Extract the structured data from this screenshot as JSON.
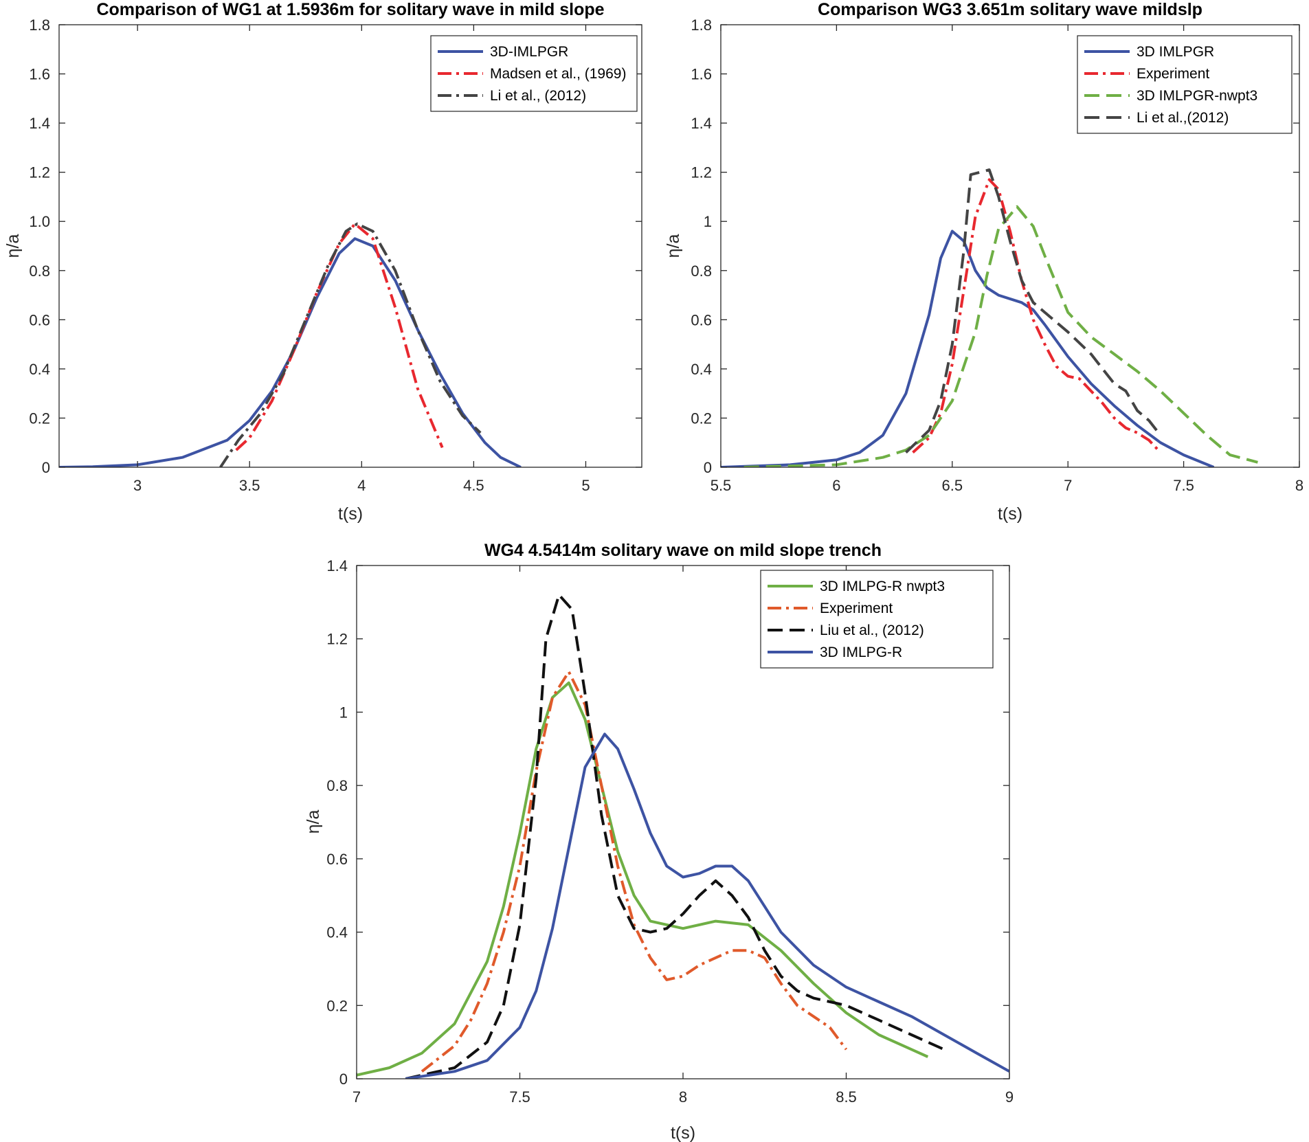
{
  "chart_data": [
    {
      "type": "line",
      "title": "Comparison of WG1 at 1.5936m for solitary wave in mild slope",
      "xlabel": "t(s)",
      "ylabel": "η/a",
      "xlim": [
        2.65,
        5.25
      ],
      "ylim": [
        0,
        1.8
      ],
      "xticks": [
        3,
        3.5,
        4,
        4.5,
        5
      ],
      "xtick_labels": [
        "3",
        "3.5",
        "4",
        "4.5",
        "5"
      ],
      "yticks": [
        0,
        0.2,
        0.4,
        0.6,
        0.8,
        1.0,
        1.2,
        1.4,
        1.6,
        1.8
      ],
      "ytick_labels": [
        "0",
        "0.2",
        "0.4",
        "0.6",
        "0.8",
        "1.0",
        "1.2",
        "1.4",
        "1.6",
        "1.8"
      ],
      "legend_position": "top-right",
      "grid": false,
      "series": [
        {
          "name": "3D-IMLPGR",
          "color": "#3D53A3",
          "style": "solid",
          "x": [
            2.65,
            2.8,
            3.0,
            3.2,
            3.4,
            3.5,
            3.6,
            3.7,
            3.8,
            3.9,
            3.97,
            4.05,
            4.15,
            4.25,
            4.35,
            4.45,
            4.55,
            4.62,
            4.71
          ],
          "y": [
            0.0,
            0.002,
            0.01,
            0.04,
            0.11,
            0.19,
            0.31,
            0.48,
            0.69,
            0.87,
            0.93,
            0.9,
            0.76,
            0.56,
            0.38,
            0.22,
            0.1,
            0.04,
            0.0
          ]
        },
        {
          "name": "Madsen et al., (1969)",
          "color": "#E8282F",
          "style": "dashdot",
          "x": [
            3.44,
            3.5,
            3.6,
            3.7,
            3.8,
            3.9,
            3.97,
            4.05,
            4.15,
            4.25,
            4.36
          ],
          "y": [
            0.07,
            0.12,
            0.27,
            0.48,
            0.71,
            0.91,
            0.99,
            0.93,
            0.65,
            0.32,
            0.08
          ]
        },
        {
          "name": "Li et al., (2012)",
          "color": "#444444",
          "style": "dashdot",
          "x": [
            3.37,
            3.45,
            3.55,
            3.65,
            3.75,
            3.85,
            3.93,
            3.98,
            4.05,
            4.15,
            4.25,
            4.35,
            4.45,
            4.53
          ],
          "y": [
            0.0,
            0.11,
            0.22,
            0.38,
            0.6,
            0.82,
            0.96,
            0.99,
            0.96,
            0.8,
            0.56,
            0.35,
            0.21,
            0.14
          ]
        }
      ]
    },
    {
      "type": "line",
      "title": "Comparison WG3 3.651m solitary wave mildslp",
      "xlabel": "t(s)",
      "ylabel": "η/a",
      "xlim": [
        5.5,
        8
      ],
      "ylim": [
        0,
        1.8
      ],
      "xticks": [
        5.5,
        6,
        6.5,
        7,
        7.5,
        8
      ],
      "xtick_labels": [
        "5.5",
        "6",
        "6.5",
        "7",
        "7.5",
        "8"
      ],
      "yticks": [
        0,
        0.2,
        0.4,
        0.6,
        0.8,
        1,
        1.2,
        1.4,
        1.6,
        1.8
      ],
      "ytick_labels": [
        "0",
        "0.2",
        "0.4",
        "0.6",
        "0.8",
        "1",
        "1.2",
        "1.4",
        "1.6",
        "1.8"
      ],
      "legend_position": "top-right",
      "grid": false,
      "series": [
        {
          "name": "3D IMLPGR",
          "color": "#3D53A3",
          "style": "solid",
          "x": [
            5.5,
            5.8,
            6.0,
            6.1,
            6.2,
            6.3,
            6.4,
            6.45,
            6.5,
            6.55,
            6.6,
            6.65,
            6.7,
            6.8,
            6.85,
            6.9,
            7.0,
            7.1,
            7.2,
            7.3,
            7.4,
            7.5,
            7.63
          ],
          "y": [
            0.0,
            0.01,
            0.03,
            0.06,
            0.13,
            0.3,
            0.62,
            0.85,
            0.96,
            0.92,
            0.8,
            0.73,
            0.7,
            0.67,
            0.64,
            0.58,
            0.45,
            0.34,
            0.25,
            0.17,
            0.1,
            0.05,
            0.0
          ]
        },
        {
          "name": "Experiment",
          "color": "#E8282F",
          "style": "dashdot",
          "x": [
            6.33,
            6.4,
            6.45,
            6.5,
            6.55,
            6.6,
            6.66,
            6.7,
            6.75,
            6.8,
            6.85,
            6.9,
            6.95,
            7.0,
            7.05,
            7.1,
            7.15,
            7.2,
            7.25,
            7.3,
            7.35,
            7.4
          ],
          "y": [
            0.06,
            0.12,
            0.22,
            0.42,
            0.72,
            1.02,
            1.17,
            1.13,
            0.96,
            0.76,
            0.6,
            0.5,
            0.41,
            0.37,
            0.36,
            0.31,
            0.26,
            0.2,
            0.16,
            0.14,
            0.11,
            0.06
          ]
        },
        {
          "name": "3D IMLPGR-nwpt3",
          "color": "#6FAF45",
          "style": "dashed",
          "x": [
            5.6,
            6.0,
            6.2,
            6.3,
            6.4,
            6.5,
            6.6,
            6.65,
            6.7,
            6.78,
            6.85,
            6.9,
            7.0,
            7.1,
            7.2,
            7.3,
            7.4,
            7.5,
            7.6,
            7.7,
            7.82
          ],
          "y": [
            0.0,
            0.01,
            0.04,
            0.07,
            0.13,
            0.27,
            0.55,
            0.78,
            0.97,
            1.06,
            0.98,
            0.86,
            0.63,
            0.53,
            0.46,
            0.39,
            0.31,
            0.22,
            0.13,
            0.05,
            0.02
          ]
        },
        {
          "name": "Li et al.,(2012)",
          "color": "#444444",
          "style": "dashed",
          "x": [
            6.3,
            6.4,
            6.45,
            6.5,
            6.55,
            6.58,
            6.62,
            6.66,
            6.7,
            6.75,
            6.8,
            6.85,
            6.9,
            7.0,
            7.1,
            7.15,
            7.2,
            7.25,
            7.3,
            7.35,
            7.4
          ],
          "y": [
            0.06,
            0.15,
            0.27,
            0.5,
            0.88,
            1.19,
            1.2,
            1.21,
            1.1,
            0.92,
            0.76,
            0.67,
            0.63,
            0.55,
            0.46,
            0.4,
            0.34,
            0.31,
            0.23,
            0.19,
            0.13
          ]
        }
      ]
    },
    {
      "type": "line",
      "title": "WG4 4.5414m solitary wave on mild slope trench",
      "xlabel": "t(s)",
      "ylabel": "η/a",
      "xlim": [
        7,
        9
      ],
      "ylim": [
        0,
        1.4
      ],
      "xticks": [
        7,
        7.5,
        8,
        8.5,
        9
      ],
      "xtick_labels": [
        "7",
        "7.5",
        "8",
        "8.5",
        "9"
      ],
      "yticks": [
        0,
        0.2,
        0.4,
        0.6,
        0.8,
        1,
        1.2,
        1.4
      ],
      "ytick_labels": [
        "0",
        "0.2",
        "0.4",
        "0.6",
        "0.8",
        "1",
        "1.2",
        "1.4"
      ],
      "legend_position": "top-right",
      "grid": false,
      "series": [
        {
          "name": "3D IMLPG-R nwpt3",
          "color": "#6FAF45",
          "style": "solid",
          "x": [
            7.0,
            7.1,
            7.2,
            7.3,
            7.4,
            7.45,
            7.5,
            7.55,
            7.6,
            7.65,
            7.7,
            7.75,
            7.8,
            7.85,
            7.9,
            8.0,
            8.1,
            8.2,
            8.3,
            8.4,
            8.5,
            8.6,
            8.7,
            8.75
          ],
          "y": [
            0.01,
            0.03,
            0.07,
            0.15,
            0.32,
            0.47,
            0.67,
            0.9,
            1.04,
            1.08,
            0.98,
            0.8,
            0.62,
            0.5,
            0.43,
            0.41,
            0.43,
            0.42,
            0.35,
            0.26,
            0.18,
            0.12,
            0.08,
            0.06
          ]
        },
        {
          "name": "Experiment",
          "color": "#E05A2B",
          "style": "dashdot",
          "x": [
            7.2,
            7.3,
            7.35,
            7.4,
            7.45,
            7.5,
            7.55,
            7.6,
            7.65,
            7.7,
            7.75,
            7.8,
            7.85,
            7.9,
            7.95,
            8.0,
            8.05,
            8.1,
            8.15,
            8.2,
            8.25,
            8.3,
            8.35,
            8.4,
            8.45,
            8.5
          ],
          "y": [
            0.02,
            0.09,
            0.16,
            0.26,
            0.4,
            0.58,
            0.84,
            1.04,
            1.11,
            1.02,
            0.8,
            0.58,
            0.42,
            0.33,
            0.27,
            0.28,
            0.31,
            0.33,
            0.35,
            0.35,
            0.33,
            0.26,
            0.2,
            0.17,
            0.14,
            0.08
          ]
        },
        {
          "name": "Liu et al., (2012)",
          "color": "#111111",
          "style": "dashed",
          "x": [
            7.15,
            7.3,
            7.4,
            7.45,
            7.5,
            7.55,
            7.58,
            7.62,
            7.66,
            7.7,
            7.75,
            7.8,
            7.85,
            7.9,
            7.95,
            8.0,
            8.05,
            8.1,
            8.15,
            8.2,
            8.25,
            8.3,
            8.35,
            8.4,
            8.5,
            8.6,
            8.7,
            8.8
          ],
          "y": [
            0.0,
            0.03,
            0.1,
            0.2,
            0.42,
            0.82,
            1.2,
            1.32,
            1.28,
            1.05,
            0.72,
            0.5,
            0.41,
            0.4,
            0.41,
            0.45,
            0.5,
            0.54,
            0.5,
            0.44,
            0.35,
            0.28,
            0.24,
            0.22,
            0.2,
            0.16,
            0.12,
            0.08
          ]
        },
        {
          "name": "3D IMLPG-R",
          "color": "#3D53A3",
          "style": "solid",
          "x": [
            7.15,
            7.3,
            7.4,
            7.5,
            7.55,
            7.6,
            7.65,
            7.7,
            7.76,
            7.8,
            7.85,
            7.9,
            7.95,
            8.0,
            8.05,
            8.1,
            8.15,
            8.2,
            8.25,
            8.3,
            8.4,
            8.5,
            8.6,
            8.7,
            8.8,
            8.9,
            9.0
          ],
          "y": [
            0.0,
            0.02,
            0.05,
            0.14,
            0.24,
            0.41,
            0.63,
            0.85,
            0.94,
            0.9,
            0.79,
            0.67,
            0.58,
            0.55,
            0.56,
            0.58,
            0.58,
            0.54,
            0.47,
            0.4,
            0.31,
            0.25,
            0.21,
            0.17,
            0.12,
            0.07,
            0.02
          ]
        }
      ]
    }
  ]
}
